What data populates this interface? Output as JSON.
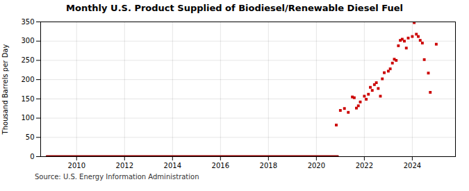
{
  "chart_data": {
    "type": "scatter",
    "title": "Monthly U.S. Product Supplied of Biodiesel/Renewable Diesel Fuel",
    "ylabel": "Thousand Barrels per Day",
    "annotations": [
      "Source: U.S. Energy Information Administration"
    ],
    "xlim": [
      2008.5,
      2025.8
    ],
    "xticks": [
      2010,
      2012,
      2014,
      2016,
      2018,
      2020,
      2022,
      2024
    ],
    "ylim": [
      0,
      350
    ],
    "yticks": [
      0,
      50,
      100,
      150,
      200,
      250,
      300,
      350
    ],
    "grid": true,
    "series": [
      {
        "type": "line",
        "color": "#8b0000",
        "line_style": "solid",
        "x": [
          2008.75,
          2020.9
        ],
        "values": [
          1.5,
          1.5
        ]
      },
      {
        "type": "scatter",
        "color": "#cc0000",
        "marker": "square",
        "x": [
          2020.83,
          2021.0,
          2021.17,
          2021.33,
          2021.5,
          2021.58,
          2021.67,
          2021.75,
          2021.83,
          2022.0,
          2022.08,
          2022.17,
          2022.25,
          2022.33,
          2022.42,
          2022.5,
          2022.58,
          2022.67,
          2022.75,
          2022.83,
          2023.0,
          2023.08,
          2023.17,
          2023.25,
          2023.33,
          2023.42,
          2023.5,
          2023.58,
          2023.67,
          2023.75,
          2023.83,
          2024.0,
          2024.08,
          2024.17,
          2024.25,
          2024.33,
          2024.42,
          2024.5,
          2024.67,
          2024.75,
          2025.0
        ],
        "values": [
          82,
          120,
          125,
          115,
          155,
          153,
          126,
          132,
          142,
          157,
          149,
          162,
          180,
          172,
          187,
          192,
          177,
          157,
          202,
          218,
          222,
          228,
          243,
          253,
          250,
          288,
          302,
          305,
          300,
          282,
          308,
          312,
          348,
          318,
          312,
          302,
          295,
          252,
          217,
          167,
          292
        ]
      }
    ]
  }
}
